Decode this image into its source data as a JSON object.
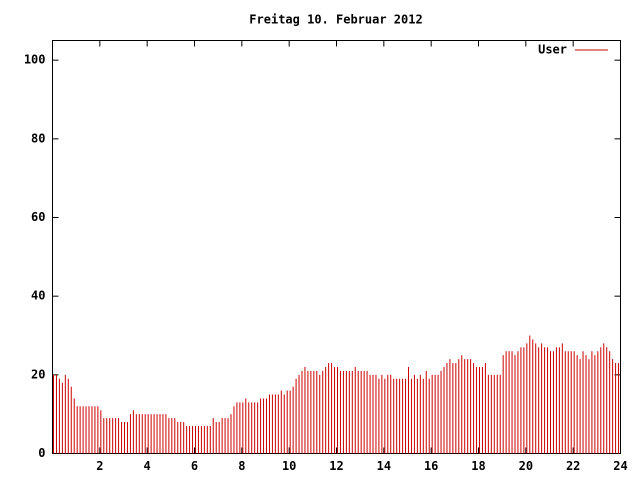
{
  "chart_data": {
    "type": "impulse",
    "title": "Freitag 10. Februar 2012",
    "xlim": [
      0,
      24
    ],
    "ylim": [
      0,
      105
    ],
    "xticks": [
      2,
      4,
      6,
      8,
      10,
      12,
      14,
      16,
      18,
      20,
      22,
      24
    ],
    "yticks": [
      0,
      20,
      40,
      60,
      80,
      100
    ],
    "legend": "top-right",
    "series": [
      {
        "name": "User",
        "color": "#cc0000",
        "x": [
          0,
          0.125,
          0.25,
          0.375,
          0.5,
          0.625,
          0.75,
          0.875,
          1,
          1.125,
          1.25,
          1.375,
          1.5,
          1.625,
          1.75,
          1.875,
          2,
          2.125,
          2.25,
          2.375,
          2.5,
          2.625,
          2.75,
          2.875,
          3,
          3.125,
          3.25,
          3.375,
          3.5,
          3.625,
          3.75,
          3.875,
          4,
          4.125,
          4.25,
          4.375,
          4.5,
          4.625,
          4.75,
          4.875,
          5,
          5.125,
          5.25,
          5.375,
          5.5,
          5.625,
          5.75,
          5.875,
          6,
          6.125,
          6.25,
          6.375,
          6.5,
          6.625,
          6.75,
          6.875,
          7,
          7.125,
          7.25,
          7.375,
          7.5,
          7.625,
          7.75,
          7.875,
          8,
          8.125,
          8.25,
          8.375,
          8.5,
          8.625,
          8.75,
          8.875,
          9,
          9.125,
          9.25,
          9.375,
          9.5,
          9.625,
          9.75,
          9.875,
          10,
          10.125,
          10.25,
          10.375,
          10.5,
          10.625,
          10.75,
          10.875,
          11,
          11.125,
          11.25,
          11.375,
          11.5,
          11.625,
          11.75,
          11.875,
          12,
          12.125,
          12.25,
          12.375,
          12.5,
          12.625,
          12.75,
          12.875,
          13,
          13.125,
          13.25,
          13.375,
          13.5,
          13.625,
          13.75,
          13.875,
          14,
          14.125,
          14.25,
          14.375,
          14.5,
          14.625,
          14.75,
          14.875,
          15,
          15.125,
          15.25,
          15.375,
          15.5,
          15.625,
          15.75,
          15.875,
          16,
          16.125,
          16.25,
          16.375,
          16.5,
          16.625,
          16.75,
          16.875,
          17,
          17.125,
          17.25,
          17.375,
          17.5,
          17.625,
          17.75,
          17.875,
          18,
          18.125,
          18.25,
          18.375,
          18.5,
          18.625,
          18.75,
          18.875,
          19,
          19.125,
          19.25,
          19.375,
          19.5,
          19.625,
          19.75,
          19.875,
          20,
          20.125,
          20.25,
          20.375,
          20.5,
          20.625,
          20.75,
          20.875,
          21,
          21.125,
          21.25,
          21.375,
          21.5,
          21.625,
          21.75,
          21.875,
          22,
          22.125,
          22.25,
          22.375,
          22.5,
          22.625,
          22.75,
          22.875,
          23,
          23.125,
          23.25,
          23.375,
          23.5,
          23.625,
          23.75,
          23.875
        ],
        "values": [
          20,
          20,
          19,
          18,
          20,
          19,
          17,
          14,
          12,
          12,
          12,
          12,
          12,
          12,
          12,
          12,
          11,
          9,
          9,
          9,
          9,
          9,
          9,
          8,
          8,
          8,
          10,
          11,
          10,
          10,
          10,
          10,
          10,
          10,
          10,
          10,
          10,
          10,
          10,
          9,
          9,
          9,
          8,
          8,
          8,
          7,
          7,
          7,
          7,
          7,
          7,
          7,
          7,
          7,
          9,
          8,
          8,
          9,
          9,
          9,
          10,
          12,
          13,
          13,
          13,
          14,
          13,
          13,
          13,
          13,
          14,
          14,
          14,
          15,
          15,
          15,
          15,
          16,
          15,
          16,
          16,
          17,
          19,
          20,
          21,
          22,
          21,
          21,
          21,
          21,
          20,
          21,
          22,
          23,
          23,
          22,
          22,
          21,
          21,
          21,
          21,
          21,
          22,
          21,
          21,
          21,
          21,
          20,
          20,
          20,
          19,
          20,
          19,
          20,
          20,
          19,
          19,
          19,
          19,
          19,
          22,
          19,
          20,
          19,
          20,
          19,
          21,
          19,
          20,
          20,
          20,
          21,
          22,
          23,
          24,
          23,
          23,
          24,
          25,
          24,
          24,
          24,
          23,
          22,
          22,
          22,
          23,
          20,
          20,
          20,
          20,
          20,
          25,
          26,
          26,
          26,
          25,
          26,
          27,
          27,
          28,
          30,
          29,
          28,
          27,
          28,
          27,
          27,
          26,
          26,
          27,
          27,
          28,
          26,
          26,
          26,
          26,
          25,
          24,
          26,
          25,
          24,
          26,
          25,
          26,
          27,
          28,
          27,
          26,
          24,
          23,
          23
        ]
      }
    ]
  }
}
